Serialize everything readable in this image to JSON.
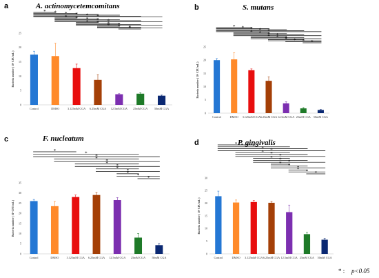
{
  "note": {
    "star": "* :",
    "text": "p<0.05"
  },
  "colors": [
    "#2477d4",
    "#ff8a2a",
    "#e80e0e",
    "#a43f07",
    "#7c2fb0",
    "#1e7a28",
    "#0a2872"
  ],
  "chart_data": [
    {
      "type": "bar",
      "letter": "a",
      "title": "A. actinomycetemcomitans",
      "ylabel": "Bacteria number ( 10⁶ CFU/mL )",
      "categories": [
        "Control",
        "DMSO",
        "3.125mM CGA",
        "6.25mM CGA",
        "12.5mM CGA",
        "25mM CGA",
        "50mM CGA"
      ],
      "values": [
        17.5,
        17,
        12.8,
        8.7,
        3.7,
        3.9,
        3.2
      ],
      "errors": [
        1.2,
        4.5,
        1.4,
        1.8,
        0.2,
        0.3,
        0.2
      ],
      "ylim": [
        0,
        25
      ],
      "yticks": [
        "0",
        "5",
        "10",
        "15",
        "20",
        "25"
      ],
      "significance": "*"
    },
    {
      "type": "bar",
      "letter": "b",
      "title": "S. mutans",
      "ylabel": "Bacteria number ( 10⁶ CFU/mL )",
      "categories": [
        "Control",
        "DMSO",
        "3.125mM CGA",
        "6.25mM CGA",
        "12.5mM CGA",
        "25mM CGA",
        "50mM CGA"
      ],
      "values": [
        20,
        20.3,
        16.2,
        12.2,
        3.7,
        1.8,
        1.2
      ],
      "errors": [
        0.6,
        2.5,
        0.5,
        1.5,
        0.6,
        0.3,
        0.2
      ],
      "ylim": [
        0,
        25
      ],
      "yticks": [
        "0",
        "5",
        "10",
        "15",
        "20",
        "25"
      ],
      "significance": "*"
    },
    {
      "type": "bar",
      "letter": "c",
      "title": "F. nucleatum",
      "ylabel": "Bacteria number ( 10⁶ CFU/mL )",
      "categories": [
        "Control",
        "DMSO",
        "3.125mM CGA",
        "6.25mM CGA",
        "12.5mM CGA",
        "25mM CGA",
        "50mM CGA"
      ],
      "values": [
        26,
        23.5,
        28,
        29,
        26.5,
        8,
        4.3
      ],
      "errors": [
        0.8,
        2.3,
        1.0,
        1.2,
        1.2,
        2.0,
        0.8
      ],
      "ylim": [
        0,
        35
      ],
      "yticks": [
        "0",
        "5",
        "10",
        "15",
        "20",
        "25",
        "30",
        "35"
      ],
      "significance": "*"
    },
    {
      "type": "bar",
      "letter": "d",
      "title": "P. gingivalis",
      "ylabel": "Bacteria number ( 10⁶ CFU/mL )",
      "categories": [
        "Control",
        "DMSO",
        "3.125mM CGA",
        "6.25mM CGA",
        "12.5mM CGA",
        "25mM CGA",
        "50mM CGA"
      ],
      "values": [
        22.8,
        20.3,
        20.5,
        20.2,
        16.5,
        7.8,
        5.6
      ],
      "errors": [
        2.0,
        1.0,
        0.6,
        0.5,
        2.8,
        0.7,
        0.5
      ],
      "ylim": [
        0,
        30
      ],
      "yticks": [
        "0",
        "5",
        "10",
        "15",
        "20",
        "25",
        "30"
      ],
      "significance": "*"
    }
  ]
}
